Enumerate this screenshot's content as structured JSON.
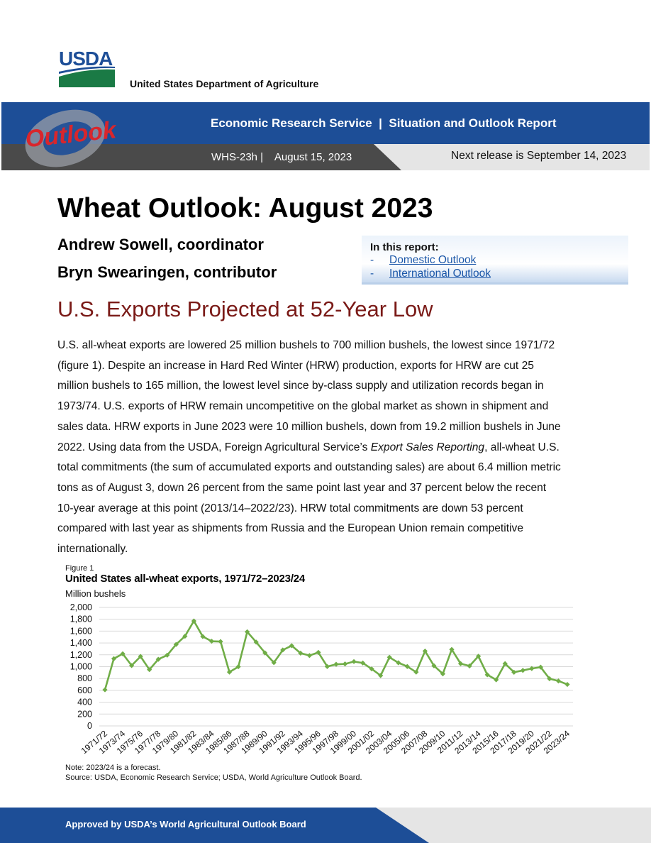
{
  "header": {
    "logo_text": "USDA",
    "dept_name": "United States Department of Agriculture",
    "banner_logo_text": "Outlook",
    "banner_title": "Economic Research Service  |  Situation and Outlook Report",
    "report_id": "WHS-23h |    August 15, 2023",
    "next_release": "Next release is September 14, 2023",
    "colors": {
      "banner_blue": "#1d4e97",
      "banner_dark": "#4a4a4a",
      "logo_red": "#d9262c"
    }
  },
  "title": "Wheat Outlook: August 2023",
  "authors": [
    "Andrew Sowell, coordinator",
    "Bryn Swearingen, contributor"
  ],
  "report_box": {
    "title": "In this report:",
    "links": [
      {
        "dash": "-",
        "label": "Domestic Outlook"
      },
      {
        "dash": "-",
        "label": "International Outlook"
      }
    ]
  },
  "section_title": "U.S. Exports Projected at 52-Year Low",
  "body_lines": [
    "U.S. all-wheat exports are lowered 25 million bushels to 700 million bushels, the lowest since 1971/72",
    "(figure 1). Despite an increase in Hard Red Winter (HRW) production, exports for HRW are cut 25",
    "million bushels to 165 million, the lowest level since by-class supply and utilization records began in",
    "1973/74. U.S. exports of HRW remain uncompetitive on the global market as shown in shipment and",
    "sales data. HRW exports in June 2023 were 10 million bushels, down from 19.2 million bushels in June",
    "total commitments (the sum of accumulated exports and outstanding sales) are about 6.4 million metric",
    "tons as of August 3, down 26 percent from the same point last year and 37 percent below the recent",
    "10-year average at this point (2013/14–2022/23). HRW total commitments are down 53 percent",
    "compared with last year as shipments from Russia and the European Union remain competitive",
    "internationally."
  ],
  "body_line6": {
    "before": "2022. Using data from the USDA, Foreign Agricultural Service’s ",
    "italic": "Export Sales Reporting",
    "after": ", all-wheat U.S."
  },
  "figure": {
    "label": "Figure 1",
    "title": "United States all-wheat exports, 1971/72–2023/24",
    "unit": "Million bushels",
    "note": "Note: 2023/24 is a forecast.",
    "source": "Source: USDA, Economic Research Service; USDA, World Agriculture Outlook Board."
  },
  "chart_data": {
    "type": "line",
    "color": "#70ad47",
    "ylim": [
      0,
      2000
    ],
    "yticks": [
      "0",
      "200",
      "400",
      "600",
      "800",
      "1,000",
      "1,200",
      "1,400",
      "1,600",
      "1,800",
      "2,000"
    ],
    "grid": true,
    "x": [
      "1971/72",
      "1972/73",
      "1973/74",
      "1974/75",
      "1975/76",
      "1976/77",
      "1977/78",
      "1978/79",
      "1979/80",
      "1980/81",
      "1981/82",
      "1982/83",
      "1983/84",
      "1984/85",
      "1985/86",
      "1986/87",
      "1987/88",
      "1988/89",
      "1989/90",
      "1990/91",
      "1991/92",
      "1992/93",
      "1993/94",
      "1994/95",
      "1995/96",
      "1996/97",
      "1997/98",
      "1998/99",
      "1999/00",
      "2000/01",
      "2001/02",
      "2002/03",
      "2003/04",
      "2004/05",
      "2005/06",
      "2006/07",
      "2007/08",
      "2008/09",
      "2009/10",
      "2010/11",
      "2011/12",
      "2012/13",
      "2013/14",
      "2014/15",
      "2015/16",
      "2016/17",
      "2017/18",
      "2018/19",
      "2019/20",
      "2020/21",
      "2021/22",
      "2022/23",
      "2023/24"
    ],
    "values": [
      610,
      1135,
      1217,
      1019,
      1173,
      950,
      1124,
      1194,
      1375,
      1514,
      1771,
      1509,
      1429,
      1424,
      909,
      999,
      1588,
      1415,
      1232,
      1068,
      1282,
      1354,
      1228,
      1188,
      1241,
      1002,
      1040,
      1046,
      1086,
      1062,
      962,
      850,
      1158,
      1066,
      1003,
      908,
      1263,
      1015,
      879,
      1291,
      1051,
      1012,
      1176,
      864,
      778,
      1051,
      906,
      937,
      969,
      992,
      796,
      759,
      700
    ],
    "tick_labels": [
      "1971/72",
      "1973/74",
      "1975/76",
      "1977/78",
      "1979/80",
      "1981/82",
      "1983/84",
      "1985/86",
      "1987/88",
      "1989/90",
      "1991/92",
      "1993/94",
      "1995/96",
      "1997/98",
      "1999/00",
      "2001/02",
      "2003/04",
      "2005/06",
      "2007/08",
      "2009/10",
      "2011/12",
      "2013/14",
      "2015/16",
      "2017/18",
      "2019/20",
      "2021/22",
      "2023/24"
    ]
  },
  "footer": {
    "text": "Approved by USDA’s World Agricultural Outlook Board"
  }
}
